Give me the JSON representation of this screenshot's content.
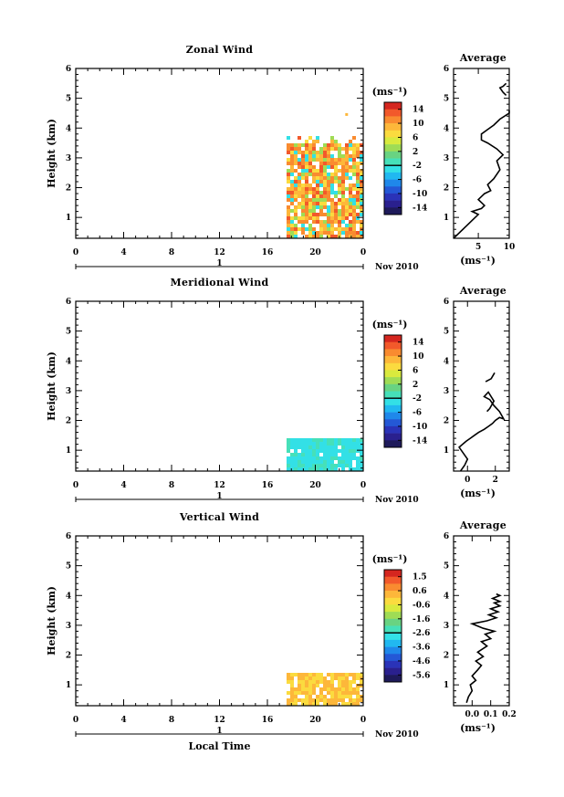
{
  "chart_data": [
    {
      "type": "heatmap",
      "title": "Zonal Wind",
      "ylabel": "Height (km)",
      "xlabel": "",
      "xlim": [
        0,
        24
      ],
      "ylim": [
        0.3,
        6
      ],
      "xticks": [
        "0",
        "4",
        "8",
        "12",
        "16",
        "20",
        "0"
      ],
      "yticks": [
        "1",
        "2",
        "3",
        "4",
        "5",
        "6"
      ],
      "date_marker": "1",
      "date_label": "Nov 2010",
      "colorbar": {
        "unit": "(ms⁻¹)",
        "labels": [
          "14",
          "10",
          "6",
          "2",
          "-2",
          "-6",
          "-10",
          "-14"
        ],
        "range": [
          -16,
          16
        ]
      },
      "data_region": {
        "x_start": 17.6,
        "x_end": 24,
        "y_start": 0.3,
        "y_top_approx": 3.5,
        "dominant_values": [
          8,
          14,
          0
        ],
        "notes": "isolated point near 4.5 km at ~22.5 h"
      },
      "profile": {
        "title": "Average",
        "xlabel": "(ms⁻¹)",
        "xlim": [
          1,
          10
        ],
        "xticks": [
          "5",
          "10"
        ],
        "yticks": [
          "1",
          "2",
          "3",
          "4",
          "5",
          "6"
        ],
        "x": [
          1,
          2,
          3,
          4,
          5,
          4,
          5.5,
          6,
          5,
          6,
          7,
          6.5,
          7.5,
          8.5,
          8,
          9,
          8,
          6.5,
          5.5,
          5.5,
          6.5,
          7.5,
          8.5,
          10,
          10
        ],
        "y": [
          0.3,
          0.5,
          0.7,
          0.9,
          1.1,
          1.2,
          1.3,
          1.4,
          1.6,
          1.8,
          1.9,
          2.1,
          2.3,
          2.6,
          2.9,
          3.1,
          3.3,
          3.5,
          3.6,
          3.8,
          3.95,
          4.1,
          4.3,
          4.5,
          4.6
        ],
        "x2": [
          9.5,
          9,
          8.5,
          9,
          9.5
        ],
        "y2": [
          5.1,
          5.2,
          5.35,
          5.4,
          5.5
        ]
      }
    },
    {
      "type": "heatmap",
      "title": "Meridional Wind",
      "ylabel": "Height (km)",
      "xlabel": "",
      "xlim": [
        0,
        24
      ],
      "ylim": [
        0.3,
        6
      ],
      "xticks": [
        "0",
        "4",
        "8",
        "12",
        "16",
        "20",
        "0"
      ],
      "yticks": [
        "1",
        "2",
        "3",
        "4",
        "5",
        "6"
      ],
      "date_marker": "1",
      "date_label": "Nov 2010",
      "colorbar": {
        "unit": "(ms⁻¹)",
        "labels": [
          "14",
          "10",
          "6",
          "2",
          "-2",
          "-6",
          "-10",
          "-14"
        ],
        "range": [
          -16,
          16
        ]
      },
      "data_region": {
        "x_start": 17.6,
        "x_end": 24,
        "y_start": 0.3,
        "y_top_approx": 1.5,
        "dominant_values": [
          -3
        ],
        "notes": "sparse cells up to ~3.5 km"
      },
      "profile": {
        "title": "Average",
        "xlabel": "(ms⁻¹)",
        "xlim": [
          -1,
          3
        ],
        "xticks": [
          "0",
          "2"
        ],
        "yticks": [
          "1",
          "2",
          "3",
          "4",
          "5",
          "6"
        ],
        "x": [
          -0.5,
          -0.2,
          0.0,
          -0.3,
          -0.6,
          -0.1,
          0.2,
          0.5,
          0.8,
          1.2,
          1.5,
          1.8,
          2.0,
          2.3,
          2.6,
          2.3,
          1.9,
          1.6,
          1.2,
          1.5,
          1.9,
          1.6,
          1.4
        ],
        "y": [
          0.3,
          0.5,
          0.7,
          0.9,
          1.1,
          1.3,
          1.4,
          1.5,
          1.6,
          1.7,
          1.8,
          1.9,
          2.0,
          2.1,
          2.05,
          2.3,
          2.5,
          2.7,
          2.8,
          2.95,
          2.65,
          2.4,
          2.3
        ],
        "x2": [
          1.3,
          1.7,
          1.95
        ],
        "y2": [
          3.3,
          3.4,
          3.6
        ]
      }
    },
    {
      "type": "heatmap",
      "title": "Vertical Wind",
      "ylabel": "Height (km)",
      "xlabel": "Local Time",
      "xlim": [
        0,
        24
      ],
      "ylim": [
        0.3,
        6
      ],
      "xticks": [
        "0",
        "4",
        "8",
        "12",
        "16",
        "20",
        "0"
      ],
      "yticks": [
        "1",
        "2",
        "3",
        "4",
        "5",
        "6"
      ],
      "date_marker": "1",
      "date_label": "Nov 2010",
      "colorbar": {
        "unit": "(ms⁻¹)",
        "labels": [
          "1.5",
          "0.6",
          "-0.6",
          "-1.6",
          "-2.6",
          "-3.6",
          "-4.6",
          "-5.6"
        ],
        "range": [
          -6,
          2
        ]
      },
      "data_region": {
        "x_start": 17.6,
        "x_end": 24,
        "y_start": 0.3,
        "y_top_approx": 1.5,
        "dominant_values": [
          0.6
        ],
        "notes": "sparse cells up to ~3.5 km"
      },
      "profile": {
        "title": "Average",
        "xlabel": "(ms⁻¹)",
        "xlim": [
          -0.1,
          0.2
        ],
        "xticks": [
          "0.0",
          "0.1",
          "0.2"
        ],
        "yticks": [
          "1",
          "2",
          "3",
          "4",
          "5",
          "6"
        ],
        "x": [
          -0.03,
          -0.02,
          0.0,
          -0.01,
          0.02,
          0.0,
          0.03,
          0.05,
          0.02,
          0.06,
          0.03,
          0.08,
          0.05,
          0.1,
          0.07,
          0.12,
          0.06,
          0.0,
          0.08,
          0.13,
          0.09,
          0.14,
          0.1,
          0.15,
          0.12,
          0.15,
          0.11,
          0.15,
          0.13
        ],
        "y": [
          0.4,
          0.6,
          0.8,
          1.0,
          1.15,
          1.3,
          1.5,
          1.65,
          1.8,
          1.95,
          2.1,
          2.3,
          2.45,
          2.55,
          2.7,
          2.8,
          2.9,
          3.05,
          3.15,
          3.25,
          3.35,
          3.45,
          3.55,
          3.65,
          3.75,
          3.8,
          3.9,
          4.0,
          4.05
        ]
      }
    }
  ]
}
